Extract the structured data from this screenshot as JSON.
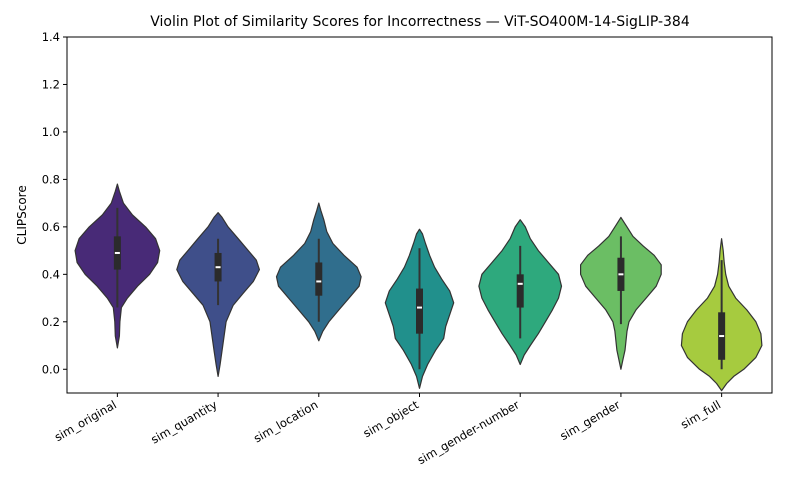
{
  "chart_data": {
    "type": "violin",
    "title": "Violin Plot of Similarity Scores for Incorrectness — ViT-SO400M-14-SigLIP-384",
    "xlabel": "",
    "ylabel": "CLIPScore",
    "ylim": [
      -0.1,
      1.4
    ],
    "yticks": [
      "0.0",
      "0.2",
      "0.4",
      "0.6",
      "0.8",
      "1.0",
      "1.2",
      "1.4"
    ],
    "grid": false,
    "categories": [
      "sim_original",
      "sim_quantity",
      "sim_location",
      "sim_object",
      "sim_gender-number",
      "sim_gender",
      "sim_full"
    ],
    "colors": [
      "#482a77",
      "#3f4f8a",
      "#306e8d",
      "#21908c",
      "#2ea97d",
      "#6bbe64",
      "#a6cb3f"
    ],
    "violins": [
      {
        "name": "sim_original",
        "min": 0.09,
        "max": 0.78,
        "median": 0.49,
        "q1": 0.42,
        "q3": 0.56,
        "whisker_low": 0.26,
        "whisker_high": 0.68,
        "profile": [
          [
            0.09,
            0
          ],
          [
            0.14,
            0.02
          ],
          [
            0.2,
            0.025
          ],
          [
            0.26,
            0.04
          ],
          [
            0.3,
            0.1
          ],
          [
            0.35,
            0.2
          ],
          [
            0.4,
            0.32
          ],
          [
            0.45,
            0.4
          ],
          [
            0.5,
            0.42
          ],
          [
            0.55,
            0.38
          ],
          [
            0.6,
            0.28
          ],
          [
            0.65,
            0.15
          ],
          [
            0.7,
            0.06
          ],
          [
            0.75,
            0.02
          ],
          [
            0.78,
            0
          ]
        ]
      },
      {
        "name": "sim_quantity",
        "min": -0.03,
        "max": 0.66,
        "median": 0.43,
        "q1": 0.37,
        "q3": 0.49,
        "whisker_low": 0.27,
        "whisker_high": 0.55,
        "profile": [
          [
            -0.03,
            0
          ],
          [
            0.02,
            0.02
          ],
          [
            0.08,
            0.04
          ],
          [
            0.14,
            0.06
          ],
          [
            0.2,
            0.08
          ],
          [
            0.27,
            0.15
          ],
          [
            0.32,
            0.25
          ],
          [
            0.37,
            0.35
          ],
          [
            0.42,
            0.41
          ],
          [
            0.46,
            0.38
          ],
          [
            0.5,
            0.3
          ],
          [
            0.55,
            0.2
          ],
          [
            0.6,
            0.1
          ],
          [
            0.64,
            0.04
          ],
          [
            0.66,
            0
          ]
        ]
      },
      {
        "name": "sim_location",
        "min": 0.12,
        "max": 0.7,
        "median": 0.37,
        "q1": 0.31,
        "q3": 0.45,
        "whisker_low": 0.2,
        "whisker_high": 0.55,
        "profile": [
          [
            0.12,
            0
          ],
          [
            0.16,
            0.04
          ],
          [
            0.2,
            0.1
          ],
          [
            0.25,
            0.2
          ],
          [
            0.3,
            0.3
          ],
          [
            0.35,
            0.4
          ],
          [
            0.39,
            0.42
          ],
          [
            0.43,
            0.38
          ],
          [
            0.48,
            0.25
          ],
          [
            0.53,
            0.14
          ],
          [
            0.58,
            0.08
          ],
          [
            0.63,
            0.05
          ],
          [
            0.67,
            0.02
          ],
          [
            0.7,
            0
          ]
        ]
      },
      {
        "name": "sim_object",
        "min": -0.08,
        "max": 0.59,
        "median": 0.26,
        "q1": 0.15,
        "q3": 0.34,
        "whisker_low": 0.0,
        "whisker_high": 0.51,
        "profile": [
          [
            -0.08,
            0
          ],
          [
            -0.03,
            0.03
          ],
          [
            0.02,
            0.08
          ],
          [
            0.08,
            0.16
          ],
          [
            0.13,
            0.24
          ],
          [
            0.18,
            0.26
          ],
          [
            0.23,
            0.3
          ],
          [
            0.28,
            0.34
          ],
          [
            0.33,
            0.3
          ],
          [
            0.38,
            0.22
          ],
          [
            0.43,
            0.15
          ],
          [
            0.48,
            0.1
          ],
          [
            0.53,
            0.06
          ],
          [
            0.57,
            0.03
          ],
          [
            0.59,
            0
          ]
        ]
      },
      {
        "name": "sim_gender-number",
        "min": 0.02,
        "max": 0.63,
        "median": 0.36,
        "q1": 0.26,
        "q3": 0.4,
        "whisker_low": 0.13,
        "whisker_high": 0.52,
        "profile": [
          [
            0.02,
            0
          ],
          [
            0.06,
            0.04
          ],
          [
            0.1,
            0.1
          ],
          [
            0.15,
            0.18
          ],
          [
            0.2,
            0.25
          ],
          [
            0.25,
            0.32
          ],
          [
            0.3,
            0.38
          ],
          [
            0.35,
            0.41
          ],
          [
            0.4,
            0.38
          ],
          [
            0.45,
            0.28
          ],
          [
            0.5,
            0.18
          ],
          [
            0.55,
            0.1
          ],
          [
            0.6,
            0.05
          ],
          [
            0.63,
            0
          ]
        ]
      },
      {
        "name": "sim_gender",
        "min": 0.0,
        "max": 0.64,
        "median": 0.4,
        "q1": 0.33,
        "q3": 0.47,
        "whisker_low": 0.19,
        "whisker_high": 0.56,
        "profile": [
          [
            0.0,
            0
          ],
          [
            0.04,
            0.02
          ],
          [
            0.08,
            0.04
          ],
          [
            0.12,
            0.05
          ],
          [
            0.16,
            0.06
          ],
          [
            0.2,
            0.08
          ],
          [
            0.25,
            0.15
          ],
          [
            0.3,
            0.25
          ],
          [
            0.35,
            0.35
          ],
          [
            0.4,
            0.4
          ],
          [
            0.44,
            0.4
          ],
          [
            0.48,
            0.33
          ],
          [
            0.52,
            0.22
          ],
          [
            0.56,
            0.12
          ],
          [
            0.6,
            0.06
          ],
          [
            0.64,
            0
          ]
        ]
      },
      {
        "name": "sim_full",
        "min": -0.09,
        "max": 0.55,
        "median": 0.14,
        "q1": 0.04,
        "q3": 0.24,
        "whisker_low": 0.0,
        "whisker_high": 0.46,
        "profile": [
          [
            -0.09,
            0
          ],
          [
            -0.06,
            0.05
          ],
          [
            -0.03,
            0.12
          ],
          [
            0.0,
            0.22
          ],
          [
            0.05,
            0.34
          ],
          [
            0.1,
            0.4
          ],
          [
            0.15,
            0.39
          ],
          [
            0.2,
            0.34
          ],
          [
            0.25,
            0.25
          ],
          [
            0.3,
            0.14
          ],
          [
            0.35,
            0.07
          ],
          [
            0.4,
            0.04
          ],
          [
            0.45,
            0.025
          ],
          [
            0.5,
            0.015
          ],
          [
            0.55,
            0
          ]
        ]
      }
    ]
  }
}
